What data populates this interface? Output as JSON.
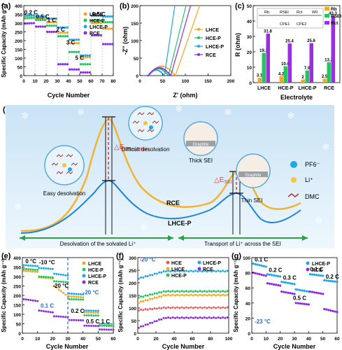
{
  "panel_labels": {
    "a": "(a)",
    "b": "(b)",
    "c": "(c)",
    "d": "(d)",
    "e": "(e)",
    "f": "(f)",
    "g": "(g)"
  },
  "colors": {
    "LHCE": "#f5a623",
    "HCE-P": "#22c55e",
    "LHCE-P": "#1ea7e6",
    "RCE": "#8b2be2",
    "dashed_blue": "#1f6fd1",
    "dark_blue_curve": "#1f82d6",
    "black_annot": "#111111",
    "red_dash": "#e53935",
    "green_arrow": "#2ea04a",
    "bg_blue": "#d8ecf8"
  },
  "chart_data": [
    {
      "panel": "a",
      "type": "scatter",
      "xlabel": "Cycle Number",
      "ylabel": "Specific Capacity (mAh g⁻¹)",
      "xlim": [
        0,
        80
      ],
      "ylim": [
        0,
        400
      ],
      "xticks": [
        0,
        10,
        20,
        30,
        40,
        50,
        60,
        70,
        80
      ],
      "yticks": [
        0,
        50,
        100,
        150,
        200,
        250,
        300,
        350,
        400
      ],
      "annotations": [
        "0.2 C",
        "0.5 C",
        "1 C",
        "2 C",
        "3 C",
        "5 C",
        "0.5 C"
      ],
      "legend": [
        "LHCE",
        "HCE-P",
        "LHCE-P",
        "RCE"
      ],
      "series": [
        {
          "name": "LHCE",
          "x": [
            2,
            10,
            20,
            30,
            40,
            50,
            60,
            70,
            80
          ],
          "y": [
            342,
            328,
            305,
            245,
            185,
            105,
            300,
            268,
            248
          ]
        },
        {
          "name": "HCE-P",
          "x": [
            2,
            10,
            20,
            30,
            40,
            50,
            60,
            70,
            80
          ],
          "y": [
            330,
            318,
            285,
            225,
            135,
            65,
            315,
            305,
            298
          ]
        },
        {
          "name": "LHCE-P",
          "x": [
            2,
            10,
            20,
            30,
            40,
            50,
            60,
            70,
            80
          ],
          "y": [
            345,
            338,
            325,
            275,
            205,
            115,
            342,
            338,
            335
          ]
        },
        {
          "name": "RCE",
          "x": [
            2,
            10,
            20,
            30,
            40,
            50,
            60,
            70,
            80
          ],
          "y": [
            300,
            280,
            250,
            65,
            35,
            18,
            230,
            180,
            165
          ]
        }
      ]
    },
    {
      "panel": "b",
      "type": "line",
      "xlabel": "Z' (ohm)",
      "ylabel": "-Z'' (ohm)",
      "xlim": [
        0,
        200
      ],
      "ylim": [
        0,
        200
      ],
      "xticks": [
        0,
        50,
        100,
        150,
        200
      ],
      "yticks": [
        0,
        50,
        100,
        150,
        200
      ],
      "legend": [
        "LHCE",
        "HCE-P",
        "LHCE-P",
        "RCE"
      ]
    },
    {
      "panel": "c",
      "type": "bar",
      "xlabel": "Electrolyte",
      "ylabel": "R (ohm)",
      "ylim": [
        0,
        50
      ],
      "yticks": [
        0,
        10,
        20,
        30,
        40,
        50
      ],
      "categories": [
        "LHCE",
        "HCE-P",
        "LHCE-P",
        "RCE"
      ],
      "legend": [
        "Rb",
        "RSEI",
        "Rct"
      ],
      "circuit_labels": [
        "Rb",
        "RSEI",
        "Rct",
        "W0",
        "CPE1",
        "CPE2"
      ],
      "series": [
        {
          "name": "Rb",
          "values": [
            3.1,
            4.2,
            2.0,
            2.5
          ]
        },
        {
          "name": "RSEI",
          "values": [
            19.3,
            10.6,
            7.9,
            13.2
          ]
        },
        {
          "name": "Rct",
          "values": [
            31.8,
            25.4,
            25.6,
            43.3
          ]
        }
      ]
    },
    {
      "panel": "e",
      "type": "scatter",
      "xlabel": "Cycle Number",
      "ylabel": "Specific Capacity (mAh g⁻¹)",
      "xlim": [
        0,
        60
      ],
      "ylim": [
        0,
        400
      ],
      "xticks": [
        0,
        10,
        20,
        30,
        40,
        50,
        60
      ],
      "yticks": [
        0,
        50,
        100,
        150,
        200,
        250,
        300,
        350,
        400
      ],
      "annotations": [
        "0 °C",
        "-10 °C",
        "-20 °C",
        "0.1 C",
        "-20 °C",
        "0.2 C",
        "0.5 C",
        "1 C"
      ],
      "legend": [
        "LHCE",
        "HCE-P",
        "LHCE-P",
        "RCE"
      ]
    },
    {
      "panel": "f",
      "type": "scatter",
      "xlabel": "Cycle Number",
      "ylabel": "Specific Capacity (mAh g⁻¹)",
      "xlim": [
        0,
        100
      ],
      "ylim": [
        0,
        300
      ],
      "xticks": [
        0,
        20,
        40,
        60,
        80,
        100
      ],
      "yticks": [
        0,
        50,
        100,
        150,
        200,
        250,
        300
      ],
      "annotations": [
        "-20 °C"
      ],
      "legend": [
        "HCE",
        "LHCE",
        "HCE-P",
        "LHCE-P",
        "RCE"
      ],
      "series": [
        {
          "name": "LHCE-P",
          "x": [
            0,
            100
          ],
          "y": [
            215,
            245
          ]
        },
        {
          "name": "HCE-P",
          "x": [
            0,
            100
          ],
          "y": [
            140,
            165
          ]
        },
        {
          "name": "LHCE",
          "x": [
            0,
            100
          ],
          "y": [
            120,
            150
          ]
        },
        {
          "name": "HCE",
          "x": [
            0,
            100
          ],
          "y": [
            90,
            100
          ]
        },
        {
          "name": "RCE",
          "x": [
            0,
            100
          ],
          "y": [
            20,
            60
          ]
        }
      ]
    },
    {
      "panel": "g",
      "type": "scatter",
      "xlabel": "Cycle Number",
      "ylabel": "Specific Capacity (mAh g⁻¹)",
      "xlim": [
        0,
        60
      ],
      "ylim": [
        0,
        100
      ],
      "xticks": [
        0,
        10,
        20,
        30,
        40,
        50,
        60
      ],
      "yticks": [
        0,
        20,
        40,
        60,
        80,
        100
      ],
      "annotations": [
        "0.1 C",
        "0.2 C",
        "0.3 C",
        "0.5 C",
        "0.1 C",
        "0.2 C",
        "-23 °C"
      ],
      "legend": [
        "LHCE-P",
        "RCE"
      ]
    }
  ],
  "diagram_d": {
    "labels": [
      "Difficult desolvation",
      "Thick SEI",
      "Graphite",
      "Easy desolvation",
      "Thin SEI",
      "Graphite",
      "RCE",
      "LHCE-P",
      "PF6⁻",
      "Li⁺",
      "DMC",
      "Desolvation of the solvated Li⁺",
      "Transport of Li⁺ across the SEI"
    ],
    "delta_desolvation": "△E",
    "delta_desolvation_sub": "desolvation",
    "delta_sei": "△E",
    "delta_sei_sub": "SEI"
  }
}
